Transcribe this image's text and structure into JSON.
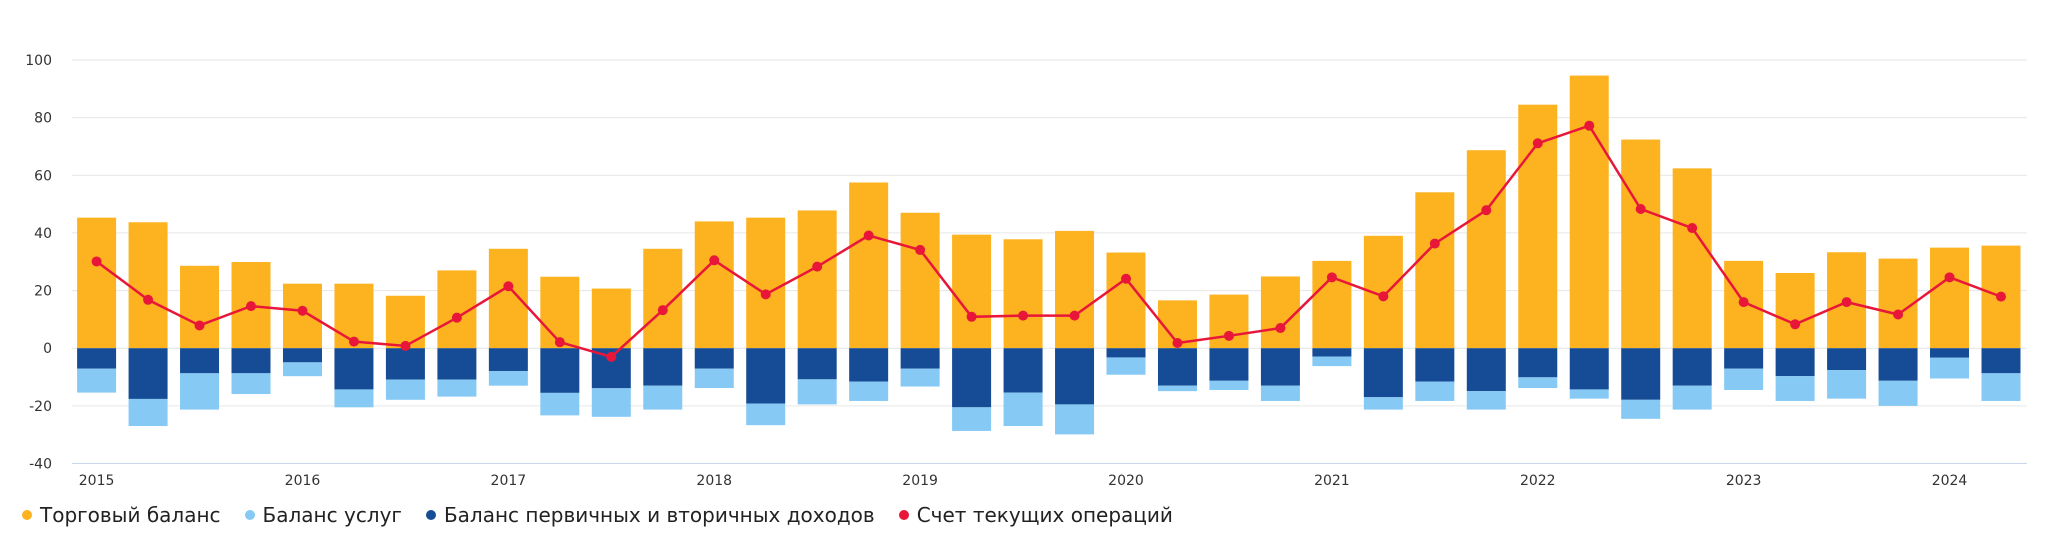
{
  "chart_data": {
    "type": "bar",
    "stacked": true,
    "categories": [
      "2015Q1",
      "2015Q2",
      "2015Q3",
      "2015Q4",
      "2016Q1",
      "2016Q2",
      "2016Q3",
      "2016Q4",
      "2017Q1",
      "2017Q2",
      "2017Q3",
      "2017Q4",
      "2018Q1",
      "2018Q2",
      "2018Q3",
      "2018Q4",
      "2019Q1",
      "2019Q2",
      "2019Q3",
      "2019Q4",
      "2020Q1",
      "2020Q2",
      "2020Q3",
      "2020Q4",
      "2021Q1",
      "2021Q2",
      "2021Q3",
      "2021Q4",
      "2022Q1",
      "2022Q2",
      "2022Q3",
      "2022Q4",
      "2023Q1",
      "2023Q2",
      "2023Q3",
      "2023Q4",
      "2024Q1",
      "2024Q2"
    ],
    "x_tick_labels": [
      "2015",
      "2016",
      "2017",
      "2018",
      "2019",
      "2020",
      "2021",
      "2022",
      "2023",
      "2024"
    ],
    "y_ticks": [
      100,
      80,
      60,
      40,
      20,
      0,
      -20,
      -40
    ],
    "ylim": [
      -40,
      100
    ],
    "grid": true,
    "legend_position": "bottom-left",
    "series": [
      {
        "name": "Торговый баланс",
        "type": "bar",
        "color": "#FDB21F",
        "values": [
          45.3,
          43.7,
          28.6,
          29.9,
          22.4,
          22.4,
          18.2,
          27.0,
          34.5,
          24.8,
          20.7,
          34.5,
          44.0,
          45.3,
          47.8,
          57.5,
          47.0,
          39.4,
          37.8,
          40.7,
          33.2,
          16.6,
          18.6,
          24.9,
          30.3,
          39.0,
          54.1,
          68.7,
          84.5,
          94.6,
          72.4,
          62.4,
          30.3,
          26.1,
          33.3,
          31.1,
          34.9,
          35.6
        ]
      },
      {
        "name": "Баланс услуг",
        "type": "bar",
        "color": "#85C9F4",
        "values": [
          -8.3,
          -9.4,
          -12.6,
          -7.2,
          -4.8,
          -6.2,
          -7.0,
          -5.9,
          -5.1,
          -7.8,
          -9.9,
          -8.3,
          -6.7,
          -7.5,
          -8.7,
          -6.7,
          -6.2,
          -8.2,
          -11.6,
          -10.4,
          -6.0,
          -1.9,
          -3.2,
          -5.3,
          -3.3,
          -4.3,
          -6.7,
          -6.4,
          -3.7,
          -3.2,
          -6.6,
          -8.3,
          -7.4,
          -8.6,
          -9.9,
          -8.7,
          -7.2,
          -9.6
        ]
      },
      {
        "name": "Баланс первичных и вторичных доходов",
        "type": "bar",
        "color": "#164C96",
        "values": [
          -7.1,
          -17.6,
          -8.7,
          -8.7,
          -4.9,
          -14.3,
          -10.9,
          -10.9,
          -7.9,
          -15.5,
          -13.9,
          -13.0,
          -7.1,
          -19.2,
          -10.8,
          -11.6,
          -7.1,
          -20.5,
          -15.4,
          -19.5,
          -3.2,
          -13.0,
          -11.3,
          -13.0,
          -2.9,
          -17.0,
          -11.6,
          -14.9,
          -10.1,
          -14.3,
          -17.9,
          -13.0,
          -7.1,
          -9.7,
          -7.6,
          -11.3,
          -3.3,
          -8.7
        ]
      },
      {
        "name": "Счет текущих операций",
        "type": "line",
        "color": "#E8173A",
        "values": [
          30.1,
          16.8,
          7.9,
          14.6,
          13.0,
          2.3,
          0.8,
          10.6,
          21.5,
          2.1,
          -3.0,
          13.2,
          30.5,
          18.7,
          28.3,
          39.1,
          34.1,
          10.9,
          11.3,
          11.3,
          24.1,
          1.8,
          4.3,
          7.0,
          24.6,
          18.0,
          36.3,
          47.9,
          71.1,
          77.2,
          48.3,
          41.7,
          16.0,
          8.3,
          16.0,
          11.7,
          24.6,
          17.9
        ]
      }
    ]
  }
}
